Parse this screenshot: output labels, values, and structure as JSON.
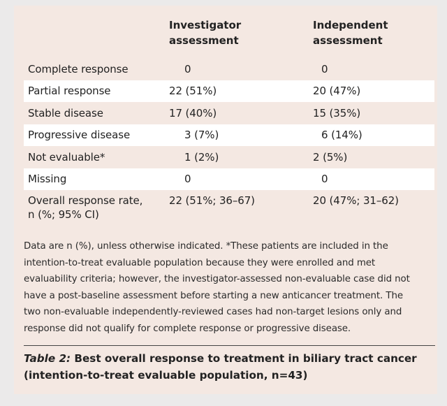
{
  "table": {
    "headers": {
      "label": "",
      "investigator": [
        "Investigator",
        "assessment"
      ],
      "independent": [
        "Independent",
        "assessment"
      ]
    },
    "rows": [
      {
        "label": "Complete response",
        "investigator": "0",
        "independent": "0",
        "shaded": false
      },
      {
        "label": "Partial response",
        "investigator": "22 (51%)",
        "independent": "20 (47%)",
        "shaded": true
      },
      {
        "label": "Stable disease",
        "investigator": "17 (40%)",
        "independent": "15 (35%)",
        "shaded": false
      },
      {
        "label": "Progressive disease",
        "investigator": "3 (7%)",
        "independent": "6 (14%)",
        "shaded": true
      },
      {
        "label": "Not evaluable*",
        "investigator": "1 (2%)",
        "independent": "2 (5%)",
        "shaded": false
      },
      {
        "label": "Missing",
        "investigator": "0",
        "independent": "0",
        "shaded": true
      },
      {
        "label": [
          "Overall response rate,",
          "n (%; 95% CI)"
        ],
        "investigator": "22 (51%; 36–67)",
        "independent": "20 (47%; 31–62)",
        "shaded": false
      }
    ]
  },
  "footnote": "Data are n (%), unless otherwise indicated. *These patients are included in the intention-to-treat evaluable population because they were enrolled and met evaluability criteria; however, the investigator-assessed non-evaluable case did not have a post-baseline assessment before starting a new anticancer treatment. The two non-evaluable independently-reviewed cases had non-target lesions only and response did not qualify for complete response or progressive disease.",
  "caption": {
    "ref": "Table 2:",
    "text": " Best overall response to treatment in biliary tract cancer (intention-to-treat evaluable population, n=43)"
  },
  "colors": {
    "page_background": "#f4e8e2",
    "shaded_row": "#ffffff",
    "outer_background": "#ebeaea"
  }
}
